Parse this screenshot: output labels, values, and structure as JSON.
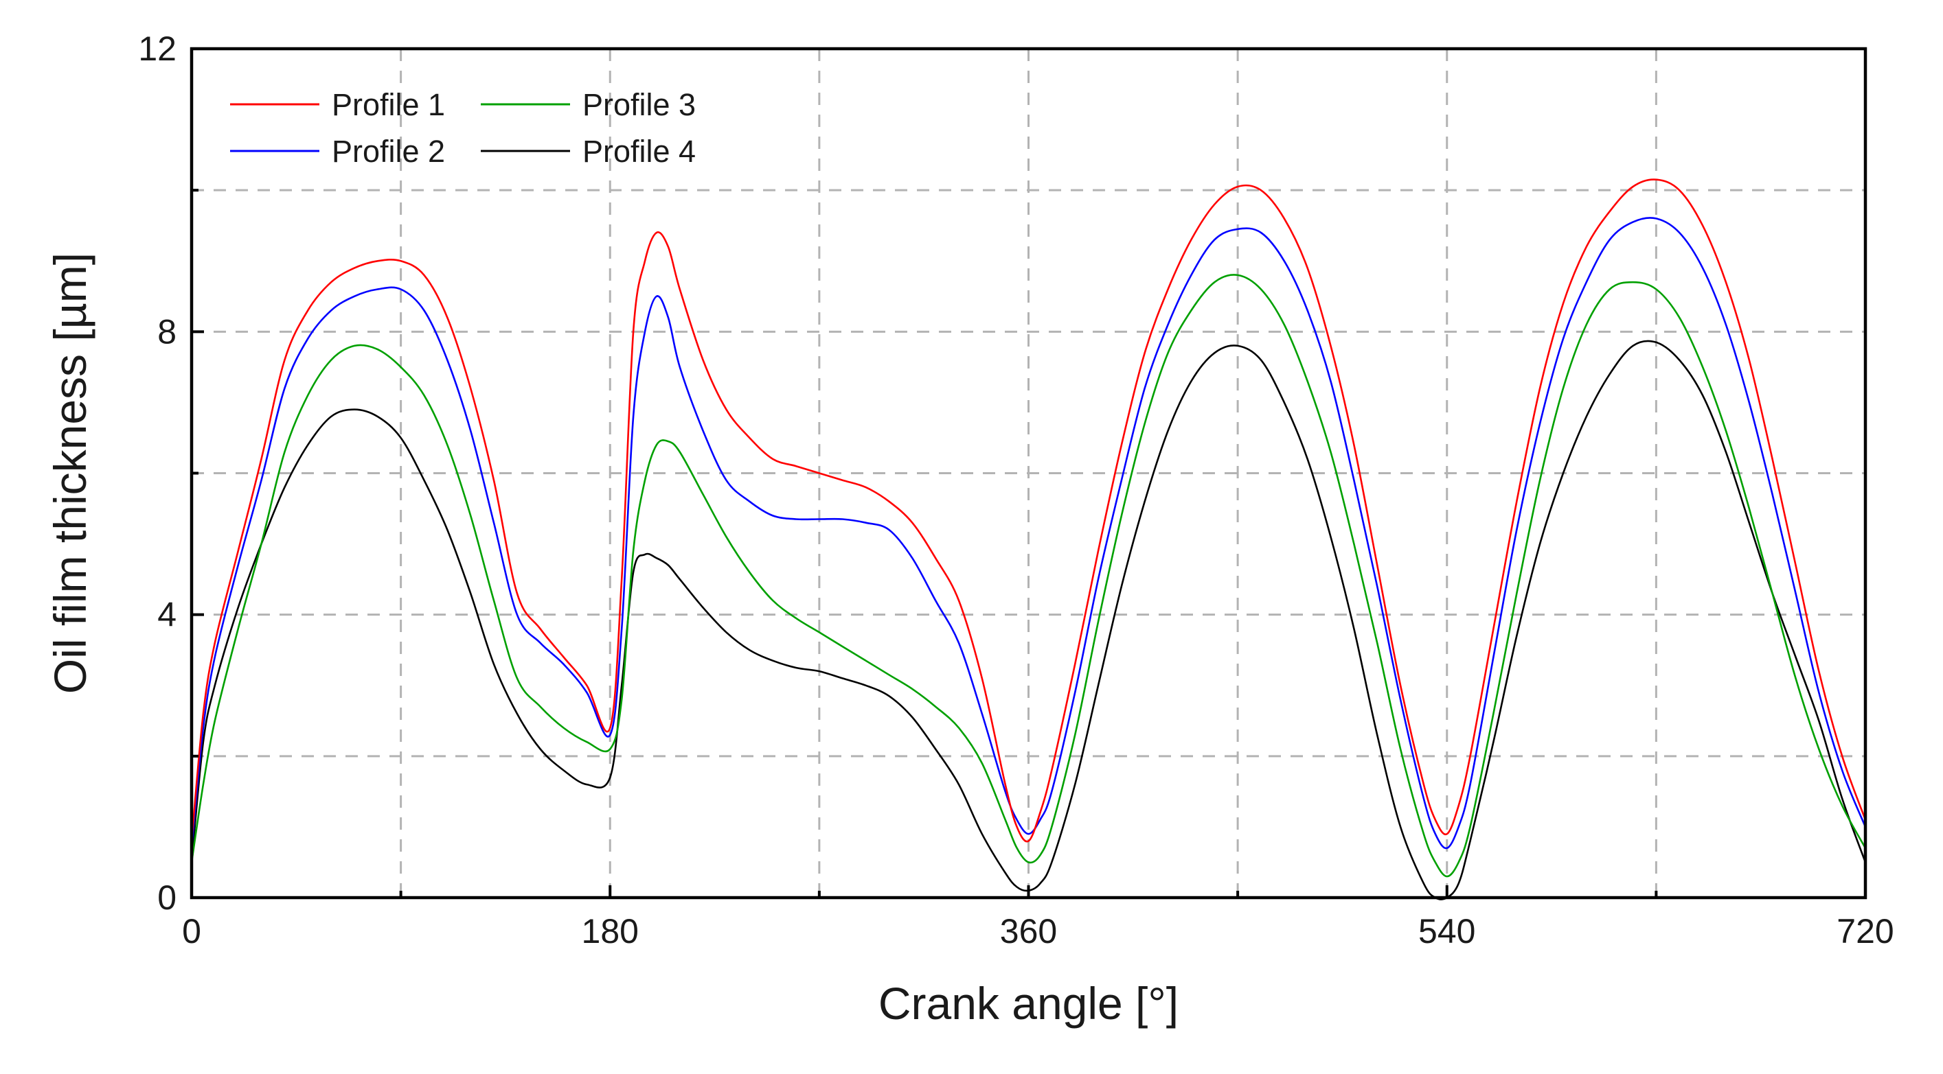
{
  "chart_data": {
    "type": "line",
    "title": "",
    "xlabel": "Crank angle [°]",
    "ylabel": "Oil film thickness [µm]",
    "xlim": [
      0,
      720
    ],
    "ylim": [
      0,
      12
    ],
    "xticks": [
      0,
      180,
      360,
      540,
      720
    ],
    "xtick_labels": [
      "0",
      "180",
      "360",
      "540",
      "720"
    ],
    "x_minor_ticks": [
      90,
      270,
      450,
      630
    ],
    "yticks": [
      0,
      4,
      8,
      12
    ],
    "ytick_labels": [
      "0",
      "4",
      "8",
      "12"
    ],
    "y_minor_ticks": [
      2,
      6,
      10
    ],
    "grid": true,
    "legend_position": "top-left",
    "x": [
      0,
      5,
      10,
      20,
      30,
      40,
      50,
      60,
      70,
      80,
      90,
      100,
      110,
      120,
      130,
      140,
      150,
      160,
      170,
      180,
      185,
      190,
      195,
      200,
      205,
      210,
      220,
      230,
      240,
      250,
      260,
      270,
      280,
      290,
      300,
      310,
      320,
      330,
      340,
      350,
      355,
      360,
      365,
      370,
      380,
      390,
      400,
      410,
      420,
      430,
      440,
      450,
      460,
      470,
      480,
      490,
      500,
      510,
      520,
      530,
      535,
      540,
      545,
      550,
      560,
      570,
      580,
      590,
      600,
      610,
      620,
      630,
      640,
      650,
      660,
      670,
      680,
      690,
      700,
      710,
      720
    ],
    "series": [
      {
        "name": "Profile 1",
        "color": "#ff0000",
        "values": [
          0.8,
          2.6,
          3.6,
          4.9,
          6.2,
          7.6,
          8.3,
          8.7,
          8.9,
          9.0,
          9.0,
          8.8,
          8.2,
          7.2,
          5.9,
          4.3,
          3.8,
          3.4,
          3.0,
          2.4,
          4.5,
          8.0,
          9.0,
          9.4,
          9.2,
          8.6,
          7.6,
          6.9,
          6.5,
          6.2,
          6.1,
          6.0,
          5.9,
          5.8,
          5.6,
          5.3,
          4.8,
          4.2,
          3.1,
          1.6,
          1.0,
          0.8,
          1.2,
          1.8,
          3.3,
          4.9,
          6.4,
          7.7,
          8.6,
          9.3,
          9.8,
          10.05,
          10.0,
          9.6,
          8.9,
          7.8,
          6.4,
          4.7,
          3.0,
          1.6,
          1.1,
          0.9,
          1.3,
          2.0,
          3.8,
          5.6,
          7.2,
          8.4,
          9.2,
          9.7,
          10.05,
          10.15,
          10.0,
          9.5,
          8.7,
          7.6,
          6.2,
          4.7,
          3.2,
          2.0,
          1.1
        ]
      },
      {
        "name": "Profile 2",
        "color": "#0000ff",
        "values": [
          0.7,
          2.4,
          3.4,
          4.7,
          5.9,
          7.2,
          7.9,
          8.3,
          8.5,
          8.6,
          8.6,
          8.3,
          7.6,
          6.6,
          5.3,
          4.0,
          3.6,
          3.3,
          2.9,
          2.3,
          3.8,
          6.8,
          8.0,
          8.5,
          8.2,
          7.5,
          6.6,
          5.9,
          5.6,
          5.4,
          5.35,
          5.35,
          5.35,
          5.3,
          5.2,
          4.8,
          4.2,
          3.6,
          2.6,
          1.5,
          1.1,
          0.9,
          1.1,
          1.5,
          2.9,
          4.5,
          5.9,
          7.2,
          8.1,
          8.8,
          9.3,
          9.45,
          9.4,
          9.0,
          8.3,
          7.3,
          5.9,
          4.4,
          2.8,
          1.4,
          0.9,
          0.7,
          1.0,
          1.6,
          3.4,
          5.2,
          6.7,
          7.9,
          8.7,
          9.3,
          9.55,
          9.6,
          9.4,
          8.9,
          8.1,
          7.0,
          5.7,
          4.3,
          2.9,
          1.8,
          1.0
        ]
      },
      {
        "name": "Profile 3",
        "color": "#00a000",
        "values": [
          0.5,
          1.6,
          2.5,
          3.8,
          5.0,
          6.3,
          7.1,
          7.6,
          7.8,
          7.75,
          7.5,
          7.1,
          6.4,
          5.4,
          4.2,
          3.1,
          2.7,
          2.4,
          2.2,
          2.1,
          2.8,
          4.9,
          5.9,
          6.4,
          6.45,
          6.3,
          5.7,
          5.1,
          4.6,
          4.2,
          3.95,
          3.75,
          3.55,
          3.35,
          3.15,
          2.95,
          2.7,
          2.4,
          1.9,
          1.1,
          0.7,
          0.5,
          0.6,
          1.0,
          2.3,
          3.9,
          5.4,
          6.7,
          7.7,
          8.3,
          8.7,
          8.8,
          8.6,
          8.1,
          7.3,
          6.3,
          5.0,
          3.6,
          2.1,
          0.9,
          0.5,
          0.3,
          0.5,
          1.0,
          2.6,
          4.3,
          5.9,
          7.2,
          8.1,
          8.6,
          8.7,
          8.6,
          8.2,
          7.5,
          6.6,
          5.5,
          4.3,
          3.1,
          2.1,
          1.3,
          0.7
        ]
      },
      {
        "name": "Profile 4",
        "color": "#000000",
        "values": [
          0.5,
          2.2,
          3.0,
          4.1,
          5.0,
          5.8,
          6.4,
          6.8,
          6.9,
          6.8,
          6.5,
          5.9,
          5.2,
          4.3,
          3.3,
          2.6,
          2.1,
          1.8,
          1.6,
          1.7,
          3.0,
          4.6,
          4.85,
          4.8,
          4.7,
          4.5,
          4.1,
          3.75,
          3.5,
          3.35,
          3.25,
          3.2,
          3.1,
          3.0,
          2.85,
          2.55,
          2.1,
          1.6,
          0.9,
          0.35,
          0.15,
          0.1,
          0.2,
          0.5,
          1.6,
          3.0,
          4.4,
          5.6,
          6.6,
          7.3,
          7.7,
          7.8,
          7.6,
          7.0,
          6.2,
          5.1,
          3.8,
          2.3,
          1.0,
          0.2,
          0.0,
          0.0,
          0.2,
          0.8,
          2.2,
          3.7,
          5.0,
          6.0,
          6.8,
          7.4,
          7.8,
          7.85,
          7.6,
          7.1,
          6.3,
          5.3,
          4.3,
          3.4,
          2.5,
          1.4,
          0.5
        ]
      }
    ]
  }
}
